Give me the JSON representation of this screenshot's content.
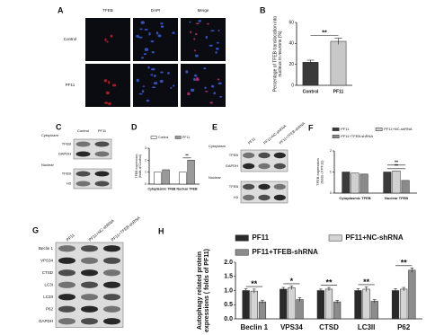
{
  "panels": {
    "A": {
      "label": "A",
      "columns": [
        "TFEB",
        "DAPI",
        "Merge"
      ],
      "rows": [
        "Control",
        "PF11"
      ]
    },
    "C": {
      "label": "C",
      "columns": [
        "Control",
        "PF11"
      ],
      "sections": [
        {
          "name": "Cytoplasm",
          "rows": [
            "TFEB",
            "GAPDH"
          ]
        },
        {
          "name": "Nuclear",
          "rows": [
            "TFEB",
            "H3"
          ]
        }
      ]
    },
    "E": {
      "label": "E",
      "columns": [
        "PF11",
        "PF11+NC-shRNA",
        "PF11+TFEB-shRNA"
      ],
      "sections": [
        {
          "name": "Cytoplasm",
          "rows": [
            "TFEB",
            "GAPDH"
          ]
        },
        {
          "name": "Nuclear",
          "rows": [
            "TFEB",
            "H3"
          ]
        }
      ]
    },
    "G": {
      "label": "G",
      "columns": [
        "PF11",
        "PF11+NC-shRNA",
        "PF11+TFEB-shRNA"
      ],
      "sections": [
        {
          "rows": [
            "Beclin 1",
            "VPS34",
            "CTSD",
            "LC3I",
            "LC3II",
            "P62",
            "GAPDH"
          ]
        }
      ]
    }
  },
  "chart_data": [
    {
      "type": "bar",
      "panel_label": "B",
      "ylabel": [
        "Percentage of TFEB translocation into",
        "nucleus in neurons (%)"
      ],
      "categories": [
        "Control",
        "PF11"
      ],
      "values": [
        22,
        42
      ],
      "errors": [
        2,
        3
      ],
      "colors": [
        "#3a3a3a",
        "#c8c8c8"
      ],
      "ylim": [
        0,
        60
      ],
      "yticks": [
        0,
        20,
        40,
        60
      ],
      "annotation": "**"
    },
    {
      "type": "bar",
      "panel_label": "D",
      "ylabel": [
        "TFEB expression",
        "(folds of Control)"
      ],
      "categories": [
        "Cytoplasmic TFEB",
        "Nuclear TFEB"
      ],
      "series": [
        {
          "name": "Control",
          "color": "#ffffff",
          "values": [
            1.0,
            1.0
          ]
        },
        {
          "name": "PF11",
          "color": "#9a9a9a",
          "values": [
            1.2,
            2.0
          ]
        }
      ],
      "ylim": [
        0,
        3
      ],
      "yticks": [
        0,
        1,
        2,
        3
      ],
      "significance": [
        [],
        [
          "**"
        ]
      ],
      "legend": "top"
    },
    {
      "type": "bar",
      "panel_label": "F",
      "ylabel": [
        "TFEB expression",
        "(folds of PF11)"
      ],
      "categories": [
        "Cytoplasmic TFEB",
        "Nuclear TFEB"
      ],
      "series": [
        {
          "name": "PF11",
          "color": "#3a3a3a",
          "values": [
            1.0,
            1.0
          ]
        },
        {
          "name": "PF11+NC-shRNA",
          "color": "#d0d0d0",
          "values": [
            0.95,
            1.05
          ]
        },
        {
          "name": "PF11+TFEB-shRNA",
          "color": "#8a8a8a",
          "values": [
            0.9,
            0.6
          ]
        }
      ],
      "ylim": [
        0,
        2
      ],
      "yticks": [
        0,
        1,
        2
      ],
      "significance": [
        [],
        [
          "**",
          "**"
        ]
      ],
      "legend": "top"
    },
    {
      "type": "bar",
      "panel_label": "H",
      "ylabel": [
        "Autophagy related protein",
        "expressions ( folds of PF11)"
      ],
      "categories": [
        "Beclin 1",
        "VPS34",
        "CTSD",
        "LC3II",
        "P62"
      ],
      "series": [
        {
          "name": "PF11",
          "color": "#2a2a2a",
          "values": [
            1.0,
            1.05,
            1.0,
            1.0,
            1.0
          ],
          "errors": [
            0.06,
            0.06,
            0.05,
            0.06,
            0.07
          ]
        },
        {
          "name": "PF11+NC-shRNA",
          "color": "#d4d4d4",
          "values": [
            0.98,
            1.1,
            1.05,
            1.05,
            1.05
          ],
          "errors": [
            0.07,
            0.06,
            0.06,
            0.08,
            0.06
          ]
        },
        {
          "name": "PF11+TFEB-shRNA",
          "color": "#8c8c8c",
          "values": [
            0.6,
            0.68,
            0.6,
            0.62,
            1.72
          ],
          "errors": [
            0.06,
            0.07,
            0.05,
            0.06,
            0.08
          ]
        }
      ],
      "ylim": [
        0,
        2
      ],
      "yticks": [
        {
          "value": 0,
          "label": "0.0"
        },
        {
          "value": 0.5,
          "label": "0.5"
        },
        {
          "value": 1,
          "label": "1.0"
        },
        {
          "value": 1.5,
          "label": "1.5"
        },
        {
          "value": 2,
          "label": "2.0"
        }
      ],
      "significance": [
        [
          "**"
        ],
        [
          "*"
        ],
        [
          "**"
        ],
        [
          "**"
        ],
        [
          "**"
        ]
      ],
      "legend": "top"
    }
  ]
}
